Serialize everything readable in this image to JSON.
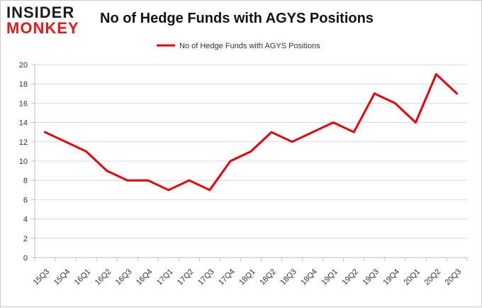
{
  "logo": {
    "line1": "INSIDER",
    "line2": "MONKEY"
  },
  "chart_data": {
    "type": "line",
    "title": "No of Hedge Funds with AGYS Positions",
    "xlabel": "",
    "ylabel": "",
    "categories": [
      "15Q3",
      "15Q4",
      "16Q1",
      "16Q2",
      "16Q3",
      "16Q4",
      "17Q1",
      "17Q2",
      "17Q3",
      "17Q4",
      "18Q1",
      "18Q2",
      "18Q3",
      "18Q4",
      "19Q1",
      "19Q2",
      "19Q3",
      "19Q4",
      "20Q1",
      "20Q2",
      "20Q3"
    ],
    "series": [
      {
        "name": "No of Hedge Funds with AGYS Positions",
        "values": [
          13,
          12,
          11,
          9,
          8,
          8,
          7,
          8,
          7,
          10,
          11,
          13,
          12,
          13,
          14,
          13,
          17,
          16,
          14,
          19,
          17
        ],
        "color": "#e8000b"
      }
    ],
    "ylim": [
      0,
      20
    ],
    "yticks": [
      0,
      2,
      4,
      6,
      8,
      10,
      12,
      14,
      16,
      18,
      20
    ],
    "grid": true,
    "legend": "top-center"
  }
}
